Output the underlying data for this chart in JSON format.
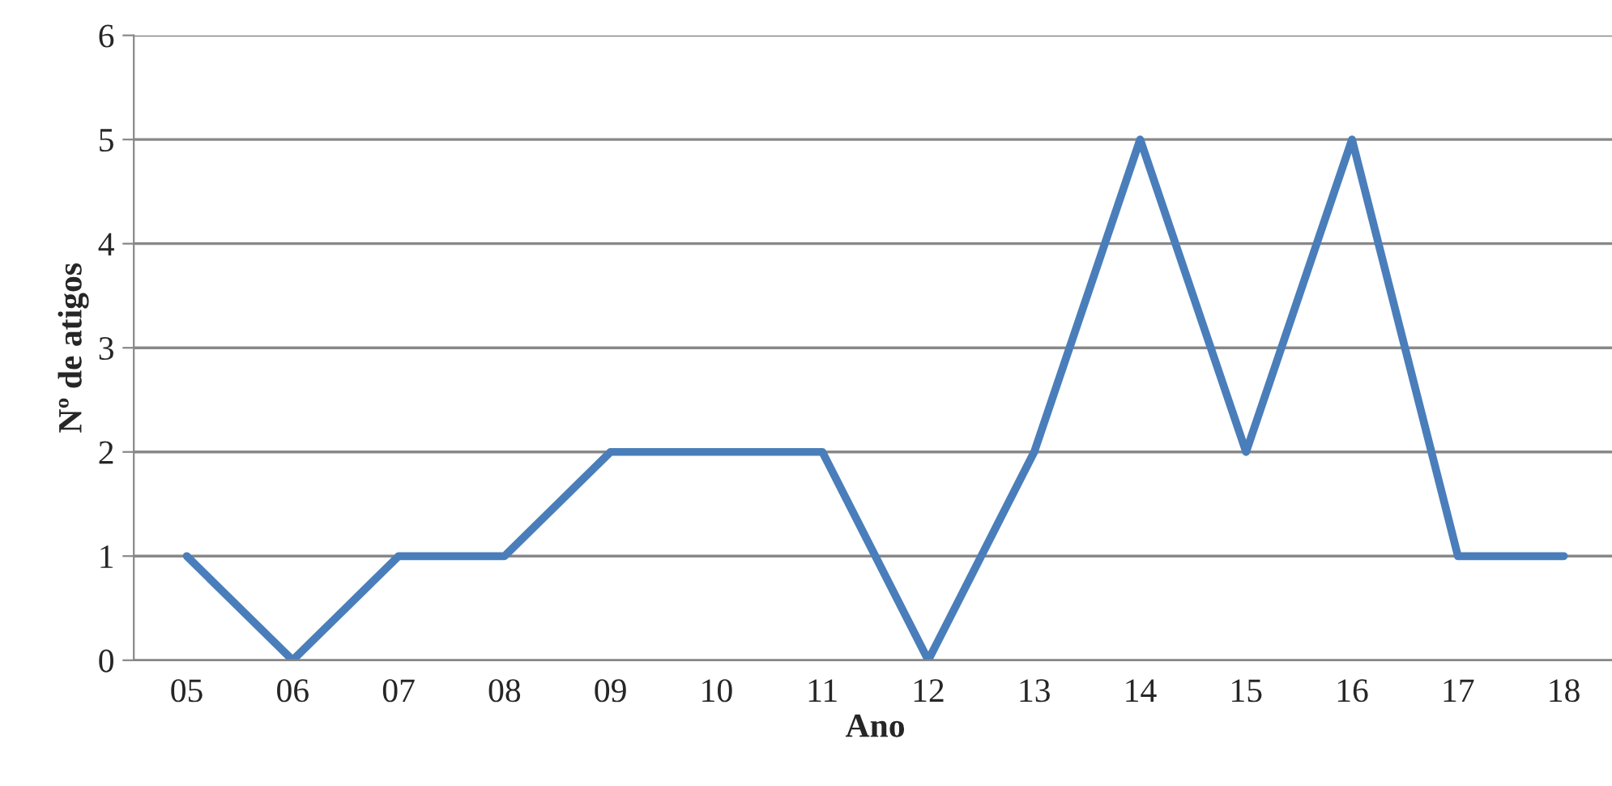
{
  "chart_data": {
    "type": "line",
    "xlabel": "Ano",
    "ylabel": "Nº de atigos",
    "categories": [
      "05",
      "06",
      "07",
      "08",
      "09",
      "10",
      "11",
      "12",
      "13",
      "14",
      "15",
      "16",
      "17",
      "18"
    ],
    "series": [
      {
        "color": "#4a7ebb",
        "values": [
          1,
          0,
          1,
          1,
          2,
          2,
          2,
          0,
          2,
          5,
          2,
          5,
          1,
          1
        ]
      }
    ],
    "ylim": [
      0,
      6
    ],
    "yticks": [
      0,
      1,
      2,
      3,
      4,
      5,
      6
    ],
    "grid": "y",
    "marker": "none",
    "line_style": "solid"
  }
}
